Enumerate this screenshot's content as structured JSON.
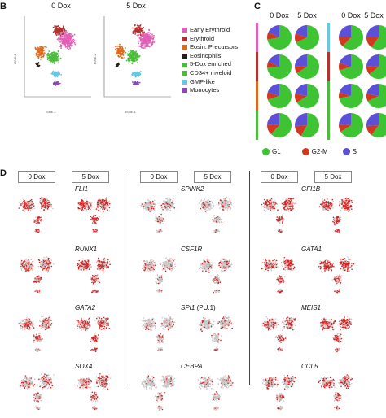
{
  "panels": {
    "B": {
      "letter": "B",
      "conditions": [
        "0 Dox",
        "5 Dox"
      ],
      "axis_x": "tSNE-1",
      "axis_y": "tSNE-2",
      "legend": [
        {
          "label": "Early Erythroid",
          "color": "#e35fb7"
        },
        {
          "label": "Erythroid",
          "color": "#b3322f"
        },
        {
          "label": "Eosin. Precursors",
          "color": "#e06a1c"
        },
        {
          "label": "Eosinophils",
          "color": "#2a1d1a"
        },
        {
          "label": "5-Dox enriched",
          "color": "#4bbd3a"
        },
        {
          "label": "CD34+ myeloid",
          "color": "#4bbd3a"
        },
        {
          "label": "GMP-like",
          "color": "#66c8e3"
        },
        {
          "label": "Monocytes",
          "color": "#8b46b8"
        }
      ]
    },
    "C": {
      "letter": "C",
      "conditions": [
        "0 Dox",
        "5 Dox",
        "0 Dox",
        "5 Dox"
      ],
      "legend": [
        {
          "label": "G1",
          "color": "#3ec433"
        },
        {
          "label": "G2-M",
          "color": "#d2381e"
        },
        {
          "label": "S",
          "color": "#5b50d6"
        }
      ],
      "row_colors": [
        "#e35fb7",
        "#b3322f",
        "#e06a1c",
        "#4bbd3a"
      ],
      "row_colors_right": [
        "#66c8e3",
        "#b3322f",
        "#4bbd3a",
        "#4bbd3a"
      ],
      "pies": [
        [
          [
            0.72,
            0.1,
            0.18
          ],
          [
            0.68,
            0.12,
            0.2
          ],
          [
            0.62,
            0.14,
            0.24
          ],
          [
            0.6,
            0.15,
            0.25
          ]
        ],
        [
          [
            0.74,
            0.08,
            0.18
          ],
          [
            0.66,
            0.1,
            0.24
          ],
          [
            0.7,
            0.1,
            0.2
          ],
          [
            0.64,
            0.12,
            0.24
          ]
        ],
        [
          [
            0.7,
            0.1,
            0.2
          ],
          [
            0.66,
            0.12,
            0.22
          ],
          [
            0.72,
            0.08,
            0.2
          ],
          [
            0.68,
            0.1,
            0.22
          ]
        ],
        [
          [
            0.62,
            0.14,
            0.24
          ],
          [
            0.58,
            0.16,
            0.26
          ],
          [
            0.66,
            0.1,
            0.24
          ],
          [
            0.6,
            0.14,
            0.26
          ]
        ]
      ]
    },
    "D": {
      "letter": "D",
      "columns": [
        {
          "conditions": [
            "0 Dox",
            "5 Dox"
          ],
          "genes": [
            {
              "name": "FLI1",
              "rest": ""
            },
            {
              "name": "RUNX1",
              "rest": ""
            },
            {
              "name": "GATA2",
              "rest": ""
            },
            {
              "name": "SOX4",
              "rest": ""
            }
          ]
        },
        {
          "conditions": [
            "0 Dox",
            "5 Dox"
          ],
          "genes": [
            {
              "name": "SPINK2",
              "rest": ""
            },
            {
              "name": "CSF1R",
              "rest": ""
            },
            {
              "name": "SPI1",
              "rest": " (PU.1)"
            },
            {
              "name": "CEBPA",
              "rest": ""
            }
          ]
        },
        {
          "conditions": [
            "0 Dox",
            "5 Dox"
          ],
          "genes": [
            {
              "name": "GFI1B",
              "rest": ""
            },
            {
              "name": "GATA1",
              "rest": ""
            },
            {
              "name": "MEIS1",
              "rest": ""
            },
            {
              "name": "CCL5",
              "rest": ""
            }
          ]
        }
      ],
      "expression_color": "#d8201f",
      "background_color": "#c9c9c9"
    }
  }
}
